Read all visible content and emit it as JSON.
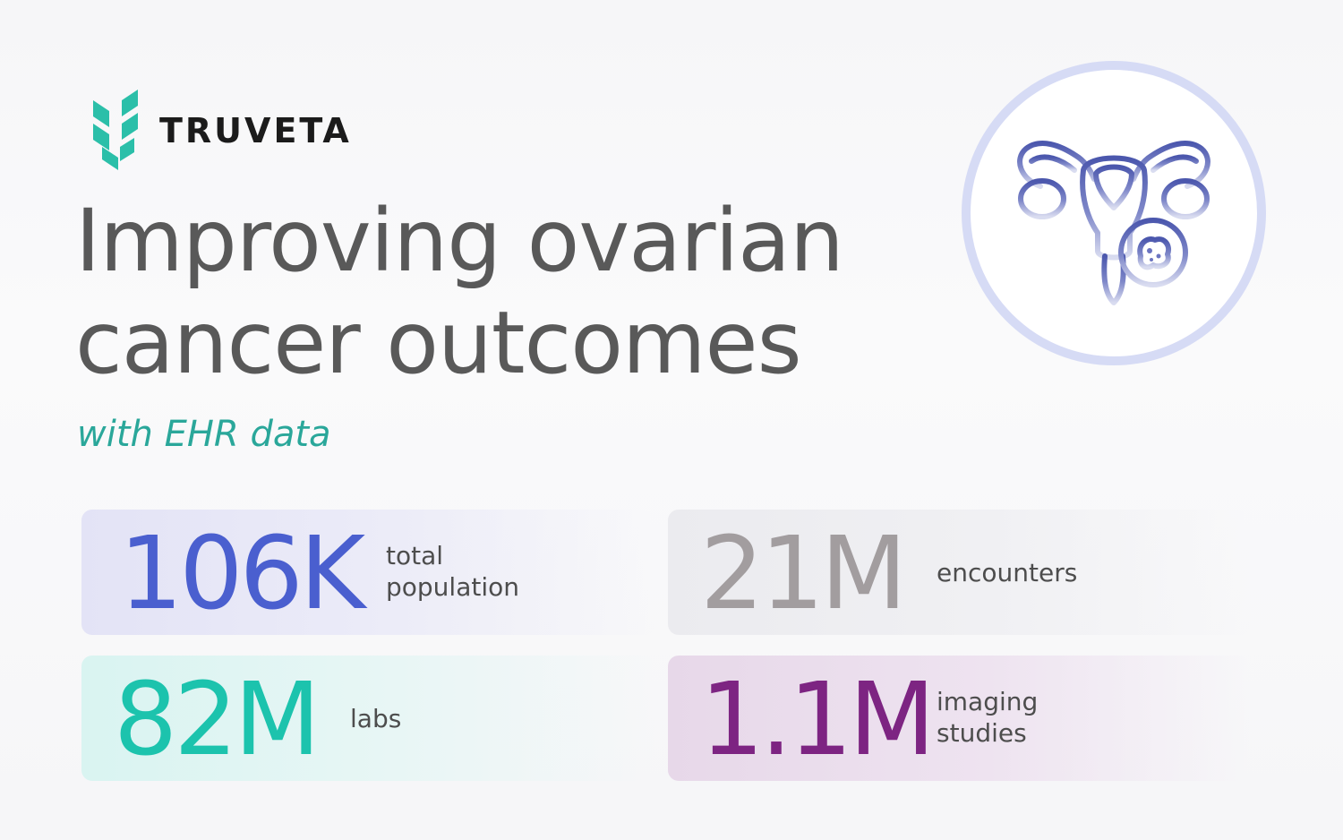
{
  "brand": {
    "name": "TRUVETA",
    "accent_color": "#2bbfa9"
  },
  "hero": {
    "title_line1": "Improving ovarian",
    "title_line2": "cancer outcomes",
    "subtitle": "with EHR data",
    "icon": "ovary-uterus-tumor-icon"
  },
  "stats": [
    {
      "value": "106K",
      "label_line1": "total",
      "label_line2": "population",
      "color": "#4a5fcf"
    },
    {
      "value": "21M",
      "label_line1": "encounters",
      "label_line2": "",
      "color": "#a29d9f"
    },
    {
      "value": "82M",
      "label_line1": "labs",
      "label_line2": "",
      "color": "#1cc3ad"
    },
    {
      "value": "1.1M",
      "label_line1": "imaging",
      "label_line2": "studies",
      "color": "#7d2482"
    }
  ]
}
